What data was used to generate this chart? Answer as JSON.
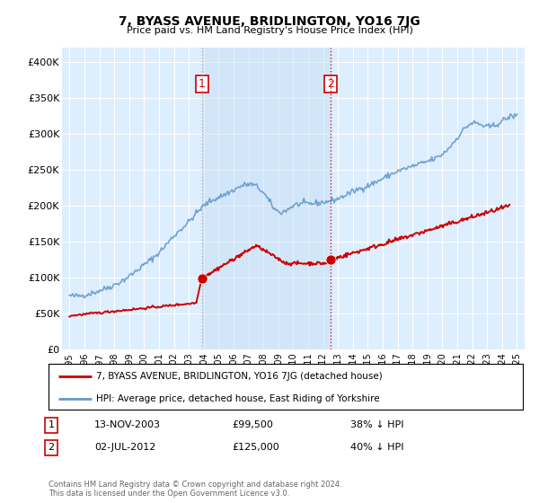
{
  "title": "7, BYASS AVENUE, BRIDLINGTON, YO16 7JG",
  "subtitle": "Price paid vs. HM Land Registry's House Price Index (HPI)",
  "ylabel_ticks": [
    "£0",
    "£50K",
    "£100K",
    "£150K",
    "£200K",
    "£250K",
    "£300K",
    "£350K",
    "£400K"
  ],
  "ytick_values": [
    0,
    50000,
    100000,
    150000,
    200000,
    250000,
    300000,
    350000,
    400000
  ],
  "ylim": [
    0,
    420000
  ],
  "xlim_start": 1994.5,
  "xlim_end": 2025.5,
  "legend_line1": "7, BYASS AVENUE, BRIDLINGTON, YO16 7JG (detached house)",
  "legend_line2": "HPI: Average price, detached house, East Riding of Yorkshire",
  "note1_date": "13-NOV-2003",
  "note1_price": "£99,500",
  "note1_hpi": "38% ↓ HPI",
  "note2_date": "02-JUL-2012",
  "note2_price": "£125,000",
  "note2_hpi": "40% ↓ HPI",
  "footer": "Contains HM Land Registry data © Crown copyright and database right 2024.\nThis data is licensed under the Open Government Licence v3.0.",
  "red_color": "#cc0000",
  "blue_color": "#6699cc",
  "bg_plot": "#ddeeff",
  "shade_color": "#c8ddf0",
  "grid_color": "#ffffff",
  "transaction1_x": 2003.87,
  "transaction1_y": 99500,
  "transaction2_x": 2012.5,
  "transaction2_y": 125000,
  "vline1_x": 2003.87,
  "vline2_x": 2012.5
}
